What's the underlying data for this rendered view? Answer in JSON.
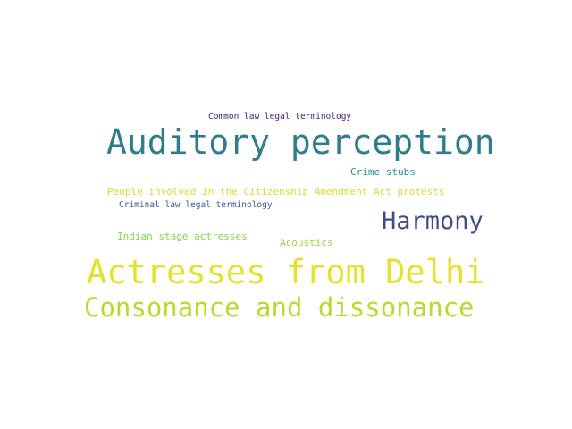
{
  "words": [
    {
      "text": "Actresses from Delhi",
      "color": "#e6e12a"
    },
    {
      "text": "Auditory perception",
      "color": "#2f7d8c"
    },
    {
      "text": "Consonance and dissonance",
      "color": "#b4dc2c"
    },
    {
      "text": "Harmony",
      "color": "#3f4d8a"
    },
    {
      "text": "People involved in the Citizenship Amendment Act protests",
      "color": "#d6dd2e"
    },
    {
      "text": "Indian stage actresses",
      "color": "#86d44c"
    },
    {
      "text": "Crime stubs",
      "color": "#2a8f96"
    },
    {
      "text": "Acoustics",
      "color": "#9cd63a"
    },
    {
      "text": "Criminal law legal terminology",
      "color": "#3a5a8c"
    },
    {
      "text": "Common law legal terminology",
      "color": "#4b1b6b"
    }
  ]
}
